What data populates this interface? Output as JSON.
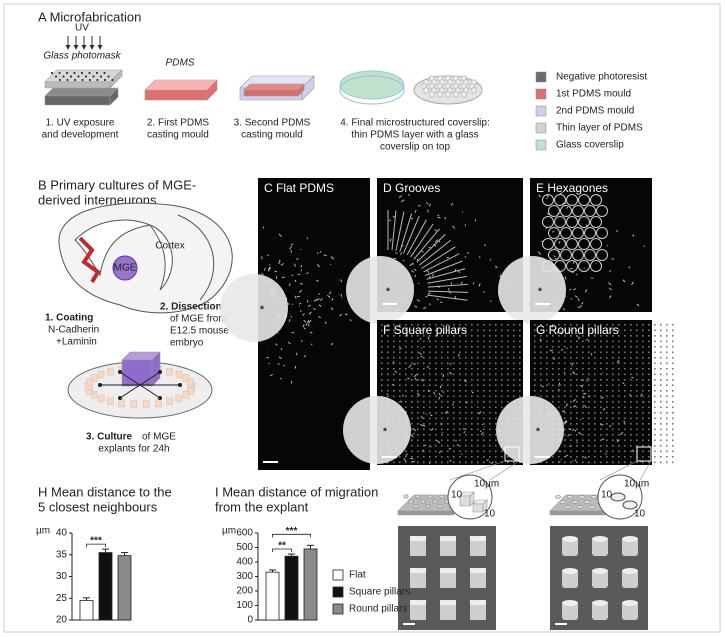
{
  "panel_a": {
    "title": "A  Microfabrication",
    "uv": "UV",
    "photomask": "Glass photomask",
    "pdms": "PDMS",
    "steps": [
      [
        "1. UV exposure",
        "and development"
      ],
      [
        "2. First PDMS",
        "casting mould"
      ],
      [
        "3. Second PDMS",
        "casting mould"
      ],
      [
        "4. Final microstructured coverslip:",
        "thin PDMS layer with a glass",
        "coverslip on top"
      ]
    ],
    "legend": [
      {
        "name": "Negative photoresist",
        "color": "#6b6b6b"
      },
      {
        "name": "1st PDMS mould",
        "color": "#e07070"
      },
      {
        "name": "2nd PDMS mould",
        "color": "#cfcfec"
      },
      {
        "name": "Thin layer of PDMS",
        "color": "#d2d2d2"
      },
      {
        "name": "Glass coverslip",
        "color": "#bfe2cf"
      }
    ]
  },
  "panel_b": {
    "title": [
      "B  Primary cultures of MGE-",
      "derived interneurons"
    ],
    "cortex": "Cortex",
    "mge": "MGE",
    "coating": {
      "bold": "1. Coating",
      "rest": [
        "N-Cadherin",
        "+Laminin"
      ]
    },
    "dissection": {
      "bold": "2. Dissection",
      "rest": [
        "of MGE from",
        "E12.5 mouse",
        "embryo"
      ]
    },
    "culture": {
      "bold": "3. Culture",
      "text": "of MGE",
      "rest": [
        "explants for 24h"
      ]
    }
  },
  "images": [
    {
      "label": "C  Flat PDMS",
      "asterisk": "*"
    },
    {
      "label": "D  Grooves",
      "asterisk": "*"
    },
    {
      "label": "E  Hexagones",
      "asterisk": "*"
    },
    {
      "label": "F  Square pillars",
      "asterisk": "*"
    },
    {
      "label": "G  Round pillars",
      "asterisk": "*"
    }
  ],
  "insets": [
    [
      "10µm",
      "10",
      "10"
    ],
    [
      "10µm",
      "10",
      "10"
    ]
  ],
  "chart_data": [
    {
      "type": "bar",
      "title": [
        "H  Mean distance to the",
        "5 closest neighbours"
      ],
      "ylabel": "µm",
      "values": [
        24.5,
        35.5,
        34.8
      ],
      "errors": [
        0.6,
        0.8,
        0.7
      ],
      "colors": [
        "#ffffff",
        "#111111",
        "#8a8a8a"
      ],
      "ylim": [
        20,
        40
      ],
      "yticks": [
        20,
        25,
        30,
        35,
        40
      ],
      "annotations": [
        {
          "text": "***",
          "from": 0,
          "to": 1
        }
      ]
    },
    {
      "type": "bar",
      "title": [
        "I  Mean distance of migration",
        "from the explant"
      ],
      "ylabel": "µm",
      "categories": [
        "Flat",
        "Square pillars",
        "Round pillars"
      ],
      "values": [
        330,
        440,
        490
      ],
      "errors": [
        15,
        15,
        25
      ],
      "colors": [
        "#ffffff",
        "#111111",
        "#8a8a8a"
      ],
      "ylim": [
        0,
        600
      ],
      "yticks": [
        0,
        100,
        200,
        300,
        400,
        500,
        600
      ],
      "legend": true,
      "annotations": [
        {
          "text": "**",
          "from": 0,
          "to": 1
        },
        {
          "text": "***",
          "from": 0,
          "to": 2
        }
      ]
    }
  ]
}
